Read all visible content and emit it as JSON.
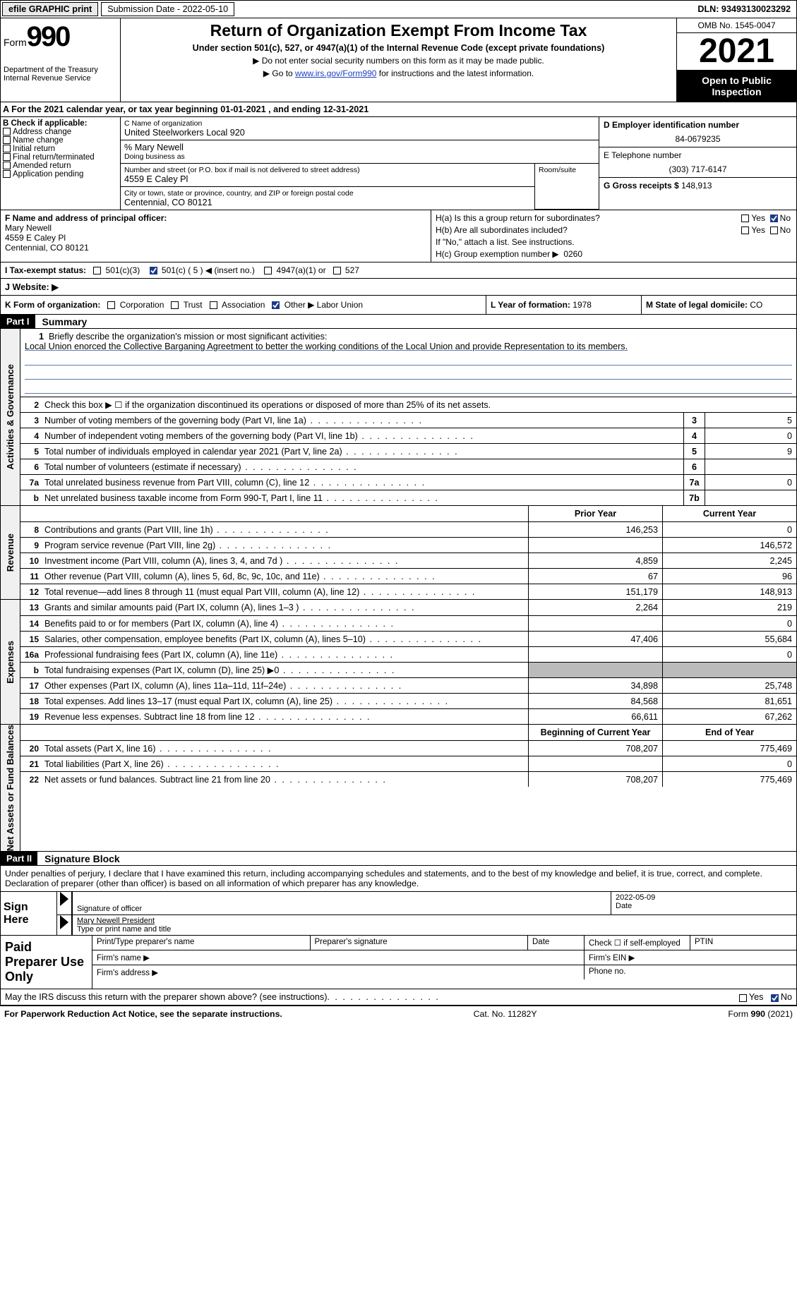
{
  "topbar": {
    "btn_efile": "efile GRAPHIC print",
    "sub_label": "Submission Date - 2022-05-10",
    "dln": "DLN: 93493130023292"
  },
  "header": {
    "form_word": "Form",
    "form_num": "990",
    "title": "Return of Organization Exempt From Income Tax",
    "subtitle": "Under section 501(c), 527, or 4947(a)(1) of the Internal Revenue Code (except private foundations)",
    "note1": "▶ Do not enter social security numbers on this form as it may be made public.",
    "note2_a": "▶ Go to ",
    "note2_link": "www.irs.gov/Form990",
    "note2_b": " for instructions and the latest information.",
    "dept": "Department of the Treasury\nInternal Revenue Service",
    "omb": "OMB No. 1545-0047",
    "year": "2021",
    "public": "Open to Public Inspection"
  },
  "A": {
    "text_a": "A For the 2021 calendar year, or tax year beginning ",
    "begin": "01-01-2021",
    "text_b": "   , and ending ",
    "end": "12-31-2021"
  },
  "B": {
    "hdr": "B Check if applicable:",
    "opts": [
      "Address change",
      "Name change",
      "Initial return",
      "Final return/terminated",
      "Amended return",
      "Application pending"
    ]
  },
  "C": {
    "lbl_name": "C Name of organization",
    "org": "United Steelworkers Local 920",
    "care": "% Mary Newell",
    "dba_lbl": "Doing business as",
    "addr_lbl": "Number and street (or P.O. box if mail is not delivered to street address)",
    "suite_lbl": "Room/suite",
    "addr": "4559 E Caley Pl",
    "city_lbl": "City or town, state or province, country, and ZIP or foreign postal code",
    "city": "Centennial, CO  80121"
  },
  "D": {
    "ein_lbl": "D Employer identification number",
    "ein": "84-0679235",
    "tel_lbl": "E Telephone number",
    "tel": "(303) 717-6147",
    "gross_lbl": "G Gross receipts $",
    "gross": "148,913"
  },
  "F": {
    "lbl": "F Name and address of principal officer:",
    "name": "Mary Newell",
    "addr1": "4559 E Caley Pl",
    "addr2": "Centennial, CO  80121"
  },
  "H": {
    "a": "H(a)  Is this a group return for subordinates?",
    "b": "H(b)  Are all subordinates included?",
    "b_note": "If \"No,\" attach a list. See instructions.",
    "c_lbl": "H(c)  Group exemption number ▶",
    "c_val": "0260",
    "yes": "Yes",
    "no": "No"
  },
  "I": {
    "lbl": "I   Tax-exempt status:",
    "o1": "501(c)(3)",
    "o2a": "501(c) ( ",
    "o2b": "5",
    "o2c": " ) ◀ (insert no.)",
    "o3": "4947(a)(1) or",
    "o4": "527"
  },
  "J": {
    "lbl": "J  Website: ▶"
  },
  "K": {
    "lbl": "K Form of organization:",
    "opts": [
      "Corporation",
      "Trust",
      "Association",
      "Other ▶"
    ],
    "other_val": "Labor Union"
  },
  "L": {
    "lbl": "L Year of formation:",
    "val": "1978"
  },
  "M": {
    "lbl": "M State of legal domicile:",
    "val": "CO"
  },
  "part1": {
    "hdr": "Part I",
    "name": "Summary",
    "tabs": [
      "Activities & Governance",
      "Revenue",
      "Expenses",
      "Net Assets or Fund Balances"
    ],
    "l1_lbl": "Briefly describe the organization's mission or most significant activities:",
    "l1_text": "Local Union enorced the Collective Barganing Agreetment to better the working conditions of the Local Union and provide Representation to its members.",
    "l2": "Check this box ▶ ☐ if the organization discontinued its operations or disposed of more than 25% of its net assets.",
    "rows_a": [
      {
        "n": "3",
        "t": "Number of voting members of the governing body (Part VI, line 1a)",
        "box": "3",
        "v": "5"
      },
      {
        "n": "4",
        "t": "Number of independent voting members of the governing body (Part VI, line 1b)",
        "box": "4",
        "v": "0"
      },
      {
        "n": "5",
        "t": "Total number of individuals employed in calendar year 2021 (Part V, line 2a)",
        "box": "5",
        "v": "9"
      },
      {
        "n": "6",
        "t": "Total number of volunteers (estimate if necessary)",
        "box": "6",
        "v": ""
      },
      {
        "n": "7a",
        "t": "Total unrelated business revenue from Part VIII, column (C), line 12",
        "box": "7a",
        "v": "0"
      },
      {
        "n": "b",
        "t": "Net unrelated business taxable income from Form 990-T, Part I, line 11",
        "box": "7b",
        "v": ""
      }
    ],
    "colhdrs": {
      "prior": "Prior Year",
      "current": "Current Year",
      "boy": "Beginning of Current Year",
      "eoy": "End of Year"
    },
    "rows_rev": [
      {
        "n": "8",
        "t": "Contributions and grants (Part VIII, line 1h)",
        "p": "146,253",
        "c": "0"
      },
      {
        "n": "9",
        "t": "Program service revenue (Part VIII, line 2g)",
        "p": "",
        "c": "146,572"
      },
      {
        "n": "10",
        "t": "Investment income (Part VIII, column (A), lines 3, 4, and 7d )",
        "p": "4,859",
        "c": "2,245"
      },
      {
        "n": "11",
        "t": "Other revenue (Part VIII, column (A), lines 5, 6d, 8c, 9c, 10c, and 11e)",
        "p": "67",
        "c": "96"
      },
      {
        "n": "12",
        "t": "Total revenue—add lines 8 through 11 (must equal Part VIII, column (A), line 12)",
        "p": "151,179",
        "c": "148,913"
      }
    ],
    "rows_exp": [
      {
        "n": "13",
        "t": "Grants and similar amounts paid (Part IX, column (A), lines 1–3 )",
        "p": "2,264",
        "c": "219"
      },
      {
        "n": "14",
        "t": "Benefits paid to or for members (Part IX, column (A), line 4)",
        "p": "",
        "c": "0"
      },
      {
        "n": "15",
        "t": "Salaries, other compensation, employee benefits (Part IX, column (A), lines 5–10)",
        "p": "47,406",
        "c": "55,684"
      },
      {
        "n": "16a",
        "t": "Professional fundraising fees (Part IX, column (A), line 11e)",
        "p": "",
        "c": "0"
      },
      {
        "n": "b",
        "t": "Total fundraising expenses (Part IX, column (D), line 25) ▶0",
        "p": "grey",
        "c": "grey"
      },
      {
        "n": "17",
        "t": "Other expenses (Part IX, column (A), lines 11a–11d, 11f–24e)",
        "p": "34,898",
        "c": "25,748"
      },
      {
        "n": "18",
        "t": "Total expenses. Add lines 13–17 (must equal Part IX, column (A), line 25)",
        "p": "84,568",
        "c": "81,651"
      },
      {
        "n": "19",
        "t": "Revenue less expenses. Subtract line 18 from line 12",
        "p": "66,611",
        "c": "67,262"
      }
    ],
    "rows_net": [
      {
        "n": "20",
        "t": "Total assets (Part X, line 16)",
        "p": "708,207",
        "c": "775,469"
      },
      {
        "n": "21",
        "t": "Total liabilities (Part X, line 26)",
        "p": "",
        "c": "0"
      },
      {
        "n": "22",
        "t": "Net assets or fund balances. Subtract line 21 from line 20",
        "p": "708,207",
        "c": "775,469"
      }
    ]
  },
  "part2": {
    "hdr": "Part II",
    "name": "Signature Block",
    "decl": "Under penalties of perjury, I declare that I have examined this return, including accompanying schedules and statements, and to the best of my knowledge and belief, it is true, correct, and complete. Declaration of preparer (other than officer) is based on all information of which preparer has any knowledge.",
    "sign_here": "Sign Here",
    "sig_officer_lbl": "Signature of officer",
    "date_lbl": "Date",
    "date_val": "2022-05-09",
    "name_title": "Mary Newell  President",
    "name_title_lbl": "Type or print name and title",
    "paid": "Paid Preparer Use Only",
    "prep_name_lbl": "Print/Type preparer's name",
    "prep_sig_lbl": "Preparer's signature",
    "prep_date_lbl": "Date",
    "self_emp": "Check ☐ if self-employed",
    "ptin": "PTIN",
    "firm_name": "Firm's name  ▶",
    "firm_ein": "Firm's EIN ▶",
    "firm_addr": "Firm's address ▶",
    "phone": "Phone no."
  },
  "discuss": {
    "text": "May the IRS discuss this return with the preparer shown above? (see instructions)",
    "yes": "Yes",
    "no": "No"
  },
  "footer": {
    "left": "For Paperwork Reduction Act Notice, see the separate instructions.",
    "mid": "Cat. No. 11282Y",
    "right": "Form 990 (2021)"
  }
}
